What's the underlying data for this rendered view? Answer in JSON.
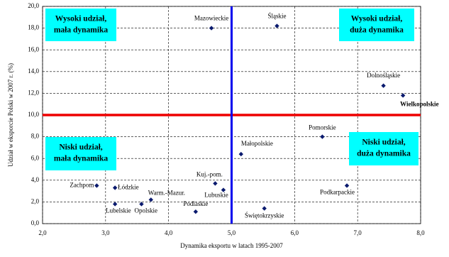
{
  "chart_data": {
    "type": "scatter",
    "x_label": "Dynamika eksportu w latach 1995-2007",
    "y_label": "Udział w eksporcie Polski w 2007 r. (%)",
    "labels": [
      "Mazowieckie",
      "Śląskie",
      "Dolnośląskie",
      "Wielkopolskie",
      "Pomorskie",
      "Małopolskie",
      "Zachpom",
      "Łódzkie",
      "Lubelskie",
      "Opolskie",
      "Warm.-Mazur.",
      "Kuj.-pom.",
      "Lubuskie",
      "Podlaskie",
      "Świętokrzyskie",
      "Podkarpackie"
    ],
    "x": [
      4.68,
      5.72,
      7.41,
      7.72,
      6.44,
      5.15,
      2.86,
      3.15,
      3.15,
      3.57,
      3.72,
      4.74,
      4.87,
      4.43,
      5.52,
      6.83
    ],
    "values": [
      18.0,
      18.2,
      12.7,
      11.8,
      8.0,
      6.4,
      3.5,
      3.3,
      1.8,
      1.8,
      2.2,
      3.7,
      3.1,
      1.1,
      1.4,
      3.5
    ],
    "color": "#0a1a6e",
    "label_colors": [
      "#000",
      "#000",
      "#000",
      "#e00000",
      "#000",
      "#000",
      "#000",
      "#000",
      "#000",
      "#000",
      "#000",
      "#000",
      "#000",
      "#000",
      "#000",
      "#000"
    ],
    "xlim": [
      2,
      8
    ],
    "xticks": [
      {
        "value": 2,
        "label": "2,0"
      },
      {
        "value": 3,
        "label": "3,0"
      },
      {
        "value": 4,
        "label": "4,0"
      },
      {
        "value": 5,
        "label": "5,0"
      },
      {
        "value": 6,
        "label": "6,0"
      },
      {
        "value": 7,
        "label": "7,0"
      },
      {
        "value": 8,
        "label": "8,0"
      }
    ],
    "ylim": [
      0,
      20
    ],
    "yticks": [
      {
        "value": 0,
        "label": "0,0"
      },
      {
        "value": 2,
        "label": "2,0"
      },
      {
        "value": 4,
        "label": "4,0"
      },
      {
        "value": 6,
        "label": "6,0"
      },
      {
        "value": 8,
        "label": "8,0"
      },
      {
        "value": 10,
        "label": "10,0"
      },
      {
        "value": 12,
        "label": "12,0"
      },
      {
        "value": 14,
        "label": "14,0"
      },
      {
        "value": 16,
        "label": "16,0"
      },
      {
        "value": 18,
        "label": "18,0"
      },
      {
        "value": 20,
        "label": "20,0"
      }
    ],
    "grid": true,
    "vline": {
      "value": 5,
      "color": "#0000ee"
    },
    "hline": {
      "value": 10,
      "color": "#ee0000"
    },
    "quadrants": [
      {
        "lines": [
          "Wysoki udział,",
          "mała dynamika"
        ]
      },
      {
        "lines": [
          "Wysoki udział,",
          "duża dynamika"
        ]
      },
      {
        "lines": [
          "Niski udział,",
          "mała dynamika"
        ]
      },
      {
        "lines": [
          "Niski udział,",
          "duża dynamika"
        ]
      }
    ],
    "quadrant_color": "#00ffff"
  }
}
